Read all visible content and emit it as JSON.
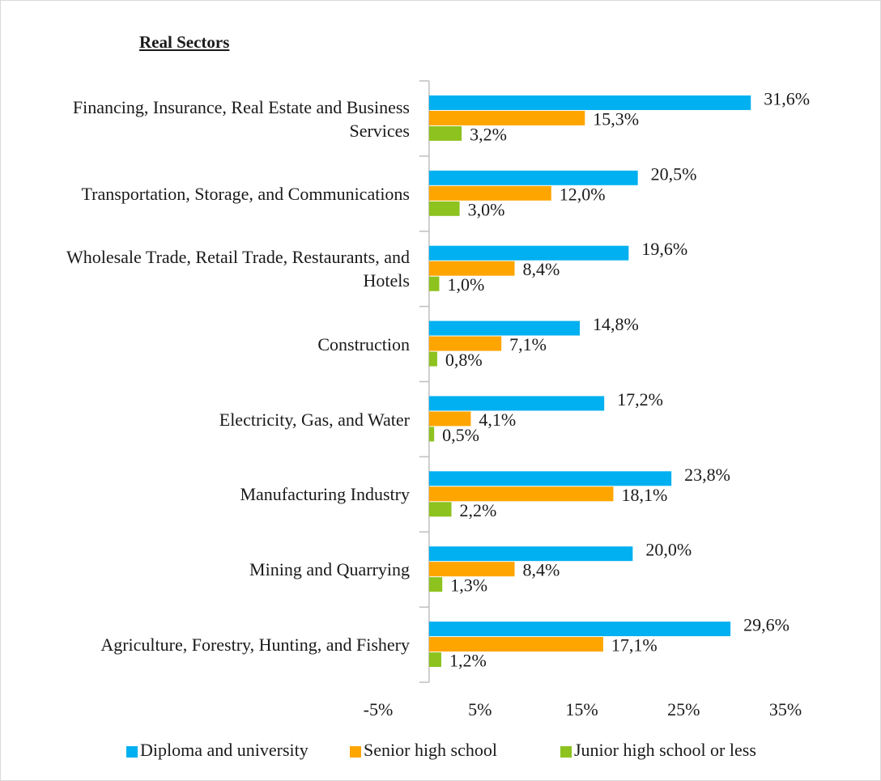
{
  "chart_data": {
    "type": "bar",
    "orientation": "horizontal",
    "title": "Real Sectors",
    "categories": [
      "Financing, Insurance, Real Estate and Business Services",
      "Transportation, Storage, and Communications",
      "Wholesale Trade, Retail Trade, Restaurants, and Hotels",
      "Construction",
      "Electricity, Gas, and Water",
      "Manufacturing Industry",
      "Mining and Quarrying",
      "Agriculture, Forestry, Hunting, and Fishery"
    ],
    "series": [
      {
        "name": "Diploma and university",
        "color": "#00b0f0",
        "values": [
          31.6,
          20.5,
          19.6,
          14.8,
          17.2,
          23.8,
          20.0,
          29.6
        ],
        "value_labels": [
          "31,6%",
          "20,5%",
          "19,6%",
          "14,8%",
          "17,2%",
          "23,8%",
          "20,0%",
          "29,6%"
        ]
      },
      {
        "name": "Senior high school",
        "color": "#ffa500",
        "values": [
          15.3,
          12.0,
          8.4,
          7.1,
          4.1,
          18.1,
          8.4,
          17.1
        ],
        "value_labels": [
          "15,3%",
          "12,0%",
          "8,4%",
          "7,1%",
          "4,1%",
          "18,1%",
          "8,4%",
          "17,1%"
        ]
      },
      {
        "name": "Junior high school or less",
        "color": "#8dc21f",
        "values": [
          3.2,
          3.0,
          1.0,
          0.8,
          0.5,
          2.2,
          1.3,
          1.2
        ],
        "value_labels": [
          "3,2%",
          "3,0%",
          "1,0%",
          "0,8%",
          "0,5%",
          "2,2%",
          "1,3%",
          "1,2%"
        ]
      }
    ],
    "xlim": [
      -5,
      35
    ],
    "xticks": [
      {
        "value": -5,
        "label": "-5%"
      },
      {
        "value": 5,
        "label": "5%"
      },
      {
        "value": 15,
        "label": "15%"
      },
      {
        "value": 25,
        "label": "25%"
      },
      {
        "value": 35,
        "label": "35%"
      }
    ],
    "legend": "bottom"
  }
}
